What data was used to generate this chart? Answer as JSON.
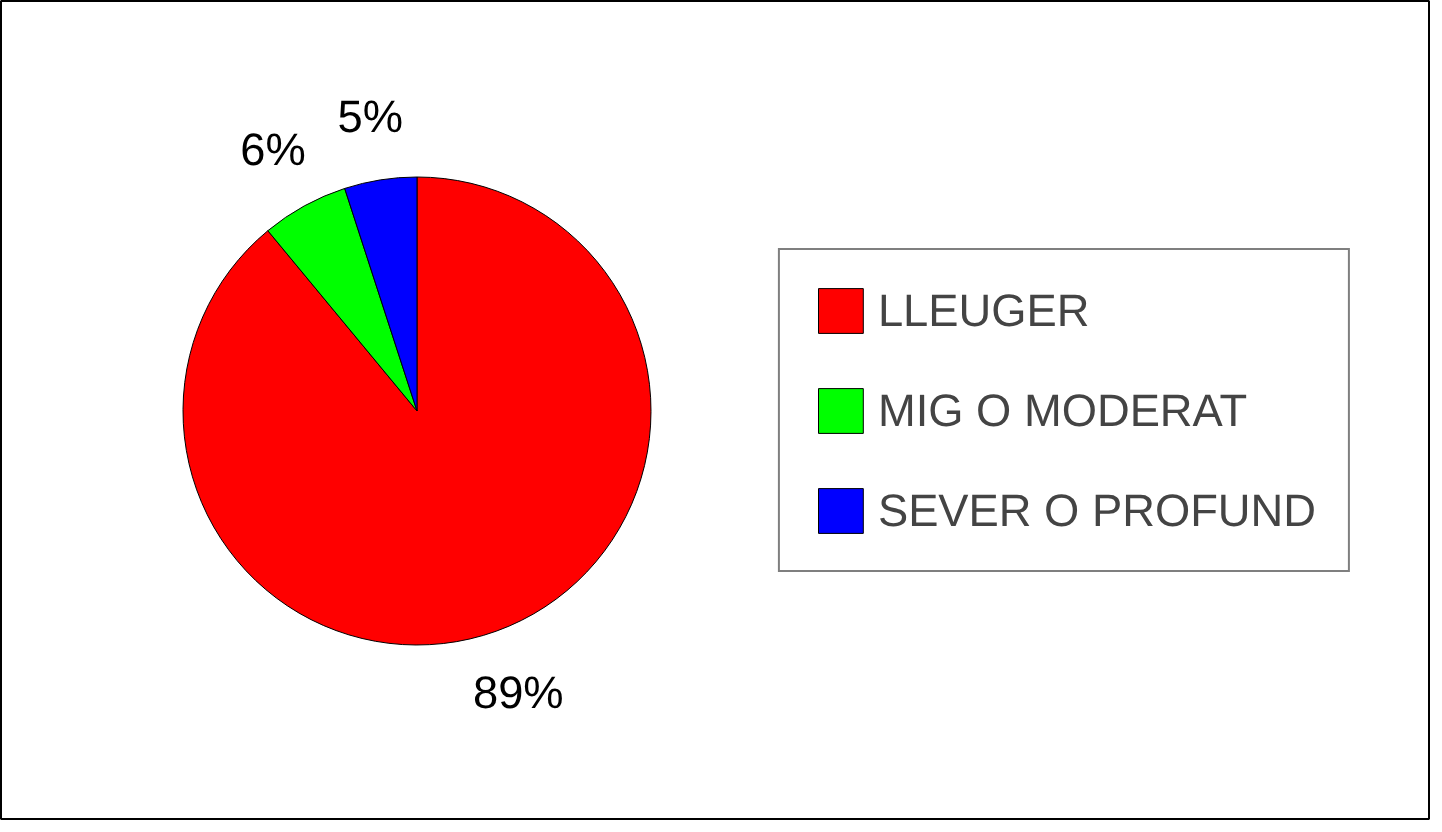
{
  "chart_data": {
    "type": "pie",
    "categories": [
      "LLEUGER",
      "MIG O MODERAT",
      "SEVER O PROFUND"
    ],
    "values": [
      89,
      6,
      5
    ],
    "colors": [
      "#ff0000",
      "#00ff00",
      "#0000ff"
    ],
    "value_labels": [
      "89%",
      "6%",
      "5%"
    ],
    "legend": "right"
  }
}
